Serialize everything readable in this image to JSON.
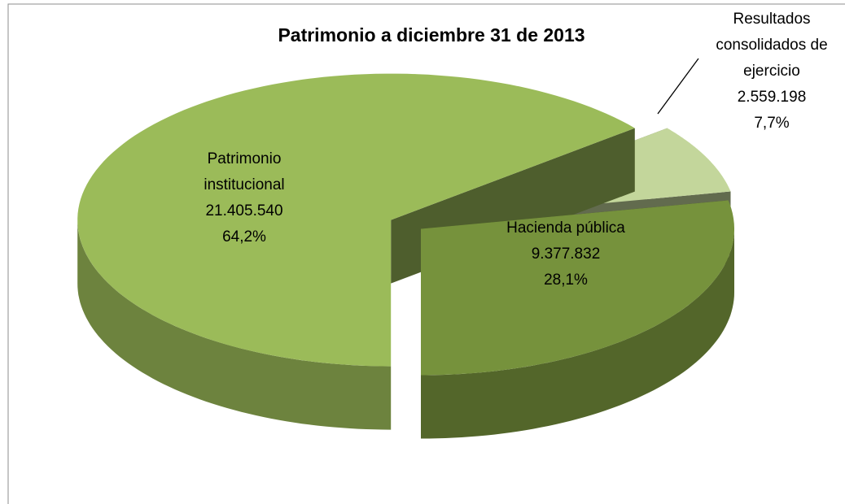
{
  "chart_data": {
    "type": "pie3d",
    "title": "Patrimonio a diciembre 31 de 2013",
    "categories": [
      "Patrimonio institucional",
      "Resultados consolidados de ejercicio",
      "Hacienda pública"
    ],
    "values": [
      21405540,
      2559198,
      9377832
    ],
    "value_labels": [
      "21.405.540",
      "2.559.198",
      "9.377.832"
    ],
    "percent_labels": [
      "64,2%",
      "7,7%",
      "28,1%"
    ],
    "colors": [
      "#9bbb59",
      "#c3d69b",
      "#76923c"
    ]
  }
}
